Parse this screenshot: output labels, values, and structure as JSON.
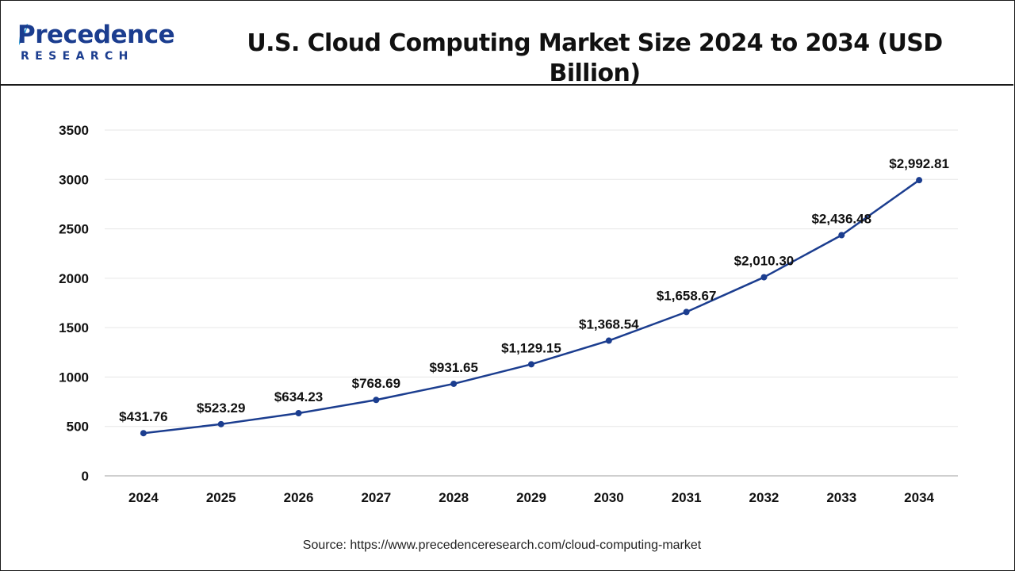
{
  "header": {
    "logo_word": "Precedence",
    "logo_sub": "RESEARCH",
    "title": "U.S. Cloud Computing Market Size 2024 to 2034 (USD Billion)"
  },
  "source": "Source: https://www.precedenceresearch.com/cloud-computing-market",
  "colors": {
    "line": "#1b3d8f",
    "point": "#1b3d8f",
    "grid": "#e6e6e6",
    "brand": "#1b3d8f"
  },
  "chart_data": {
    "type": "line",
    "title": "U.S. Cloud Computing Market Size 2024 to 2034 (USD Billion)",
    "xlabel": "",
    "ylabel": "",
    "categories": [
      "2024",
      "2025",
      "2026",
      "2027",
      "2028",
      "2029",
      "2030",
      "2031",
      "2032",
      "2033",
      "2034"
    ],
    "series": [
      {
        "values": [
          431.76,
          523.29,
          634.23,
          768.69,
          931.65,
          1129.15,
          1368.54,
          1658.67,
          2010.3,
          2436.48,
          2992.81
        ],
        "labels": [
          "$431.76",
          "$523.29",
          "$634.23",
          "$768.69",
          "$931.65",
          "$1,129.15",
          "$1,368.54",
          "$1,658.67",
          "$2,010.30",
          "$2,436.48",
          "$2,992.81"
        ]
      }
    ],
    "ylim": [
      0,
      3500
    ],
    "yticks": [
      0,
      500,
      1000,
      1500,
      2000,
      2500,
      3000,
      3500
    ],
    "grid": true,
    "legend": "none"
  }
}
